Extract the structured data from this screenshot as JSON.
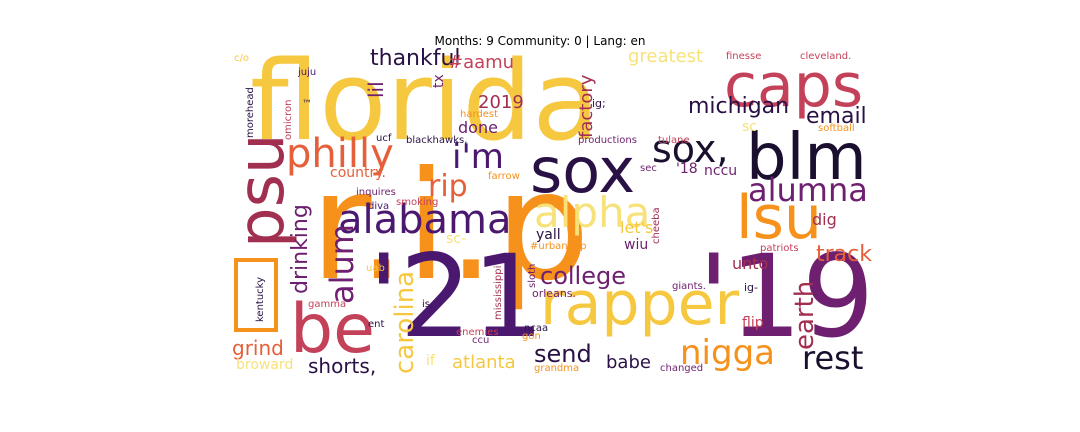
{
  "title": "Months: 9 Community: 0 | Lang: en",
  "colors": {
    "palette": "inferno",
    "dark_purple": "#4b1870",
    "plum": "#6e1f6f",
    "maroon": "#a13050",
    "rose": "#c4415a",
    "orange_red": "#e5603a",
    "orange": "#f6911c",
    "gold": "#f6c840",
    "light_yellow": "#f7e27a",
    "near_black": "#1a0f2e"
  },
  "words": [
    {
      "text": "r.i.p"
    },
    {
      "text": "florida"
    },
    {
      "text": "'21"
    },
    {
      "text": "'19"
    },
    {
      "text": "sox"
    },
    {
      "text": "blm"
    },
    {
      "text": "caps"
    },
    {
      "text": "psu"
    },
    {
      "text": "be"
    },
    {
      "text": "rapper"
    },
    {
      "text": "lsu"
    },
    {
      "text": "alabama"
    },
    {
      "text": "philly"
    },
    {
      "text": "sox,"
    },
    {
      "text": "i'm"
    },
    {
      "text": "alpha"
    },
    {
      "text": "alumna"
    },
    {
      "text": "rip"
    },
    {
      "text": "nigga"
    },
    {
      "text": "alum"
    },
    {
      "text": "college"
    },
    {
      "text": "rest"
    },
    {
      "text": "carolina"
    },
    {
      "text": "earth"
    },
    {
      "text": "michigan"
    },
    {
      "text": "thankful"
    },
    {
      "text": "drinking"
    },
    {
      "text": "email"
    },
    {
      "text": "track"
    },
    {
      "text": "send"
    },
    {
      "text": "grind"
    },
    {
      "text": "shorts,"
    },
    {
      "text": "atlanta"
    },
    {
      "text": "babe"
    },
    {
      "text": "lil"
    },
    {
      "text": "#aamu"
    },
    {
      "text": "2019"
    },
    {
      "text": "factory"
    },
    {
      "text": "done"
    },
    {
      "text": "greatest"
    },
    {
      "text": "country."
    },
    {
      "text": "let's"
    },
    {
      "text": "unto"
    },
    {
      "text": "yall"
    },
    {
      "text": "wiu"
    },
    {
      "text": "sc"
    },
    {
      "text": "dig"
    },
    {
      "text": "nccu"
    },
    {
      "text": "'18"
    },
    {
      "text": "flip"
    },
    {
      "text": "tx"
    },
    {
      "text": "broward"
    },
    {
      "text": "ig-"
    },
    {
      "text": "#urbanpop"
    },
    {
      "text": "orleans."
    },
    {
      "text": "cheeba"
    },
    {
      "text": "blackhawks,"
    },
    {
      "text": "productions"
    },
    {
      "text": "hardest"
    },
    {
      "text": "ig;"
    },
    {
      "text": "farrow"
    },
    {
      "text": "sec"
    },
    {
      "text": "tulane"
    },
    {
      "text": "softball"
    },
    {
      "text": "finesse"
    },
    {
      "text": "cleveland."
    },
    {
      "text": "juju"
    },
    {
      "text": "c/o"
    },
    {
      "text": "morehead"
    },
    {
      "text": "omicron"
    },
    {
      "text": "™"
    },
    {
      "text": "ucf"
    },
    {
      "text": "inquires"
    },
    {
      "text": "smoking"
    },
    {
      "text": "diva"
    },
    {
      "text": "gamma"
    },
    {
      "text": "kentucky"
    },
    {
      "text": "uab"
    },
    {
      "text": "is."
    },
    {
      "text": "ent"
    },
    {
      "text": "mississippi"
    },
    {
      "text": "sloth"
    },
    {
      "text": "ncaa"
    },
    {
      "text": "ccu"
    },
    {
      "text": "enemies"
    },
    {
      "text": "gon"
    },
    {
      "text": "grandma"
    },
    {
      "text": "changed"
    },
    {
      "text": "giants."
    },
    {
      "text": "patriots"
    },
    {
      "text": "if"
    },
    {
      "text": "sc-"
    }
  ]
}
